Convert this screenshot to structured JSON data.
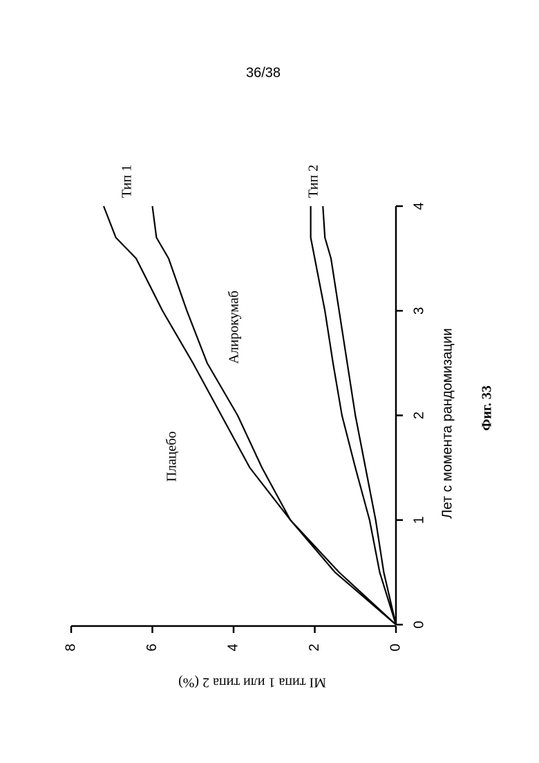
{
  "page_number": "36/38",
  "figure_caption": "Фиг. 33",
  "chart_data": {
    "type": "line",
    "x_label": "Лет с момента рандомизации",
    "y_label": "MI типа 1 или типа 2 (%)",
    "x": [
      0,
      0.5,
      1,
      1.5,
      2,
      2.5,
      3,
      3.5,
      3.7,
      4
    ],
    "series": [
      {
        "color": "#000000",
        "values": [
          0,
          1.4,
          2.6,
          3.6,
          4.3,
          5.0,
          5.75,
          6.4,
          6.9,
          7.2
        ]
      },
      {
        "color": "#000000",
        "values": [
          0,
          1.5,
          2.6,
          3.3,
          3.9,
          4.65,
          5.15,
          5.6,
          5.9,
          6.0
        ]
      },
      {
        "color": "#000000",
        "values": [
          0,
          0.4,
          0.65,
          1.0,
          1.33,
          1.55,
          1.75,
          2.0,
          2.1,
          2.1
        ]
      },
      {
        "color": "#000000",
        "values": [
          0,
          0.3,
          0.5,
          0.75,
          1.0,
          1.2,
          1.4,
          1.6,
          1.75,
          1.8
        ]
      }
    ],
    "xlim": [
      0,
      4
    ],
    "xticks": [
      0,
      1,
      2,
      3,
      4
    ],
    "ylim": [
      0,
      8
    ],
    "yticks": [
      0,
      2,
      4,
      6,
      8
    ],
    "annotations": [
      "Плацебо",
      "Алирокумаб",
      "Тип 1",
      "Тип 2"
    ]
  }
}
